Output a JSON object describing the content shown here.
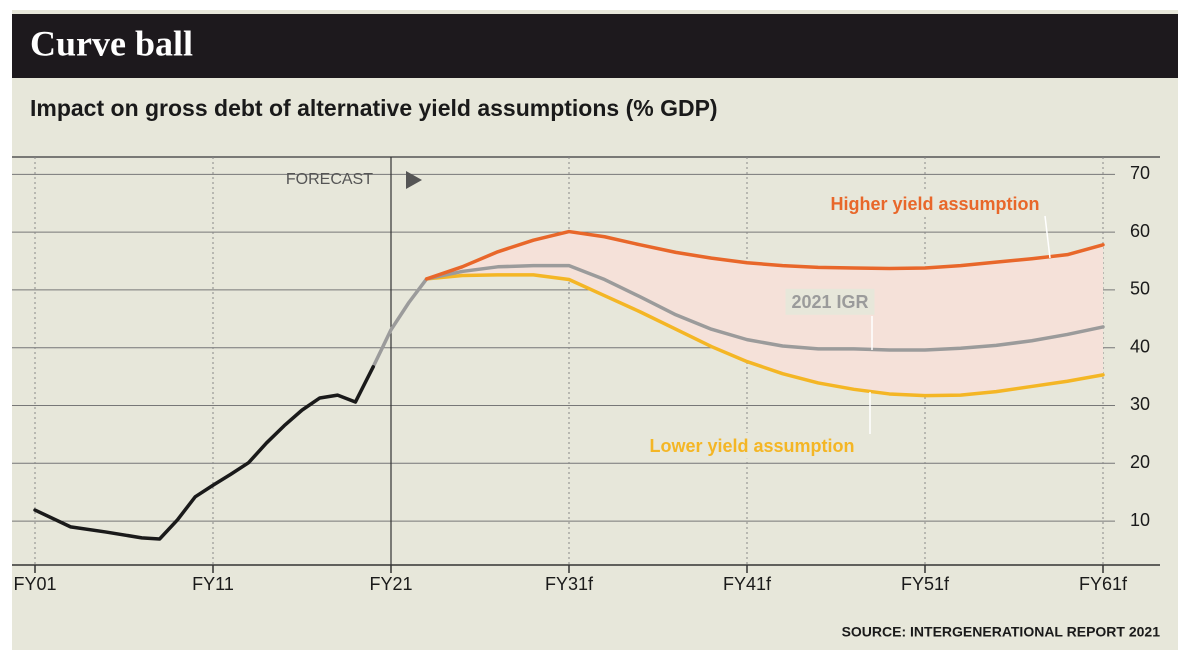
{
  "chart_data": {
    "type": "line",
    "title": "Curve ball",
    "subtitle": "Impact on gross debt of alternative yield assumptions (% GDP)",
    "source": "SOURCE:  INTERGENERATIONAL REPORT 2021",
    "forecast": {
      "label": "FORECAST",
      "x": 2021
    },
    "xlim": [
      2001,
      2061
    ],
    "xticks": [
      {
        "value": 2001,
        "label": "FY01"
      },
      {
        "value": 2011,
        "label": "FY11"
      },
      {
        "value": 2021,
        "label": "FY21"
      },
      {
        "value": 2031,
        "label": "FY31f"
      },
      {
        "value": 2041,
        "label": "FY41f"
      },
      {
        "value": 2051,
        "label": "FY51f"
      },
      {
        "value": 2061,
        "label": "FY61f"
      }
    ],
    "ylim": [
      2.4,
      73
    ],
    "yticks": [
      10,
      20,
      30,
      40,
      50,
      60,
      70
    ],
    "grid": true,
    "band_color": "#f5e1d9",
    "series": [
      {
        "color": "#1a1a1a",
        "x": [
          2001,
          2003,
          2005,
          2007,
          2008,
          2009,
          2010,
          2011,
          2012,
          2013,
          2014,
          2015,
          2016,
          2017,
          2018,
          2019,
          2020
        ],
        "values": [
          11.9,
          9.0,
          8.1,
          7.1,
          6.9,
          10.2,
          14.2,
          16.2,
          18.1,
          20.1,
          23.5,
          26.5,
          29.2,
          31.3,
          31.8,
          30.6,
          36.7
        ]
      },
      {
        "name": "Higher yield assumption",
        "color": "#e8672a",
        "x": [
          2023,
          2025,
          2027,
          2029,
          2031,
          2033,
          2035,
          2037,
          2039,
          2041,
          2043,
          2045,
          2047,
          2049,
          2051,
          2053,
          2055,
          2057,
          2059,
          2061
        ],
        "values": [
          51.9,
          54.0,
          56.6,
          58.6,
          60.1,
          59.2,
          57.8,
          56.5,
          55.5,
          54.7,
          54.2,
          53.9,
          53.8,
          53.7,
          53.8,
          54.2,
          54.8,
          55.4,
          56.1,
          57.8
        ]
      },
      {
        "name": "2021 IGR",
        "color": "#9b9b9b",
        "x": [
          2020,
          2021,
          2022,
          2023,
          2025,
          2027,
          2029,
          2031,
          2033,
          2035,
          2037,
          2039,
          2041,
          2043,
          2045,
          2047,
          2049,
          2051,
          2053,
          2055,
          2057,
          2059,
          2061
        ],
        "values": [
          36.7,
          43.1,
          47.8,
          51.9,
          53.2,
          54.0,
          54.2,
          54.2,
          51.8,
          48.8,
          45.7,
          43.2,
          41.4,
          40.3,
          39.8,
          39.8,
          39.6,
          39.6,
          39.9,
          40.4,
          41.2,
          42.3,
          43.6
        ]
      },
      {
        "name": "Lower yield assumption",
        "color": "#f4b625",
        "x": [
          2023,
          2025,
          2027,
          2029,
          2031,
          2033,
          2035,
          2037,
          2039,
          2041,
          2043,
          2045,
          2047,
          2049,
          2051,
          2053,
          2055,
          2057,
          2059,
          2061
        ],
        "values": [
          51.9,
          52.5,
          52.6,
          52.6,
          51.8,
          49.0,
          46.2,
          43.2,
          40.2,
          37.6,
          35.5,
          33.9,
          32.8,
          32.0,
          31.7,
          31.8,
          32.4,
          33.3,
          34.2,
          35.3
        ]
      }
    ]
  }
}
